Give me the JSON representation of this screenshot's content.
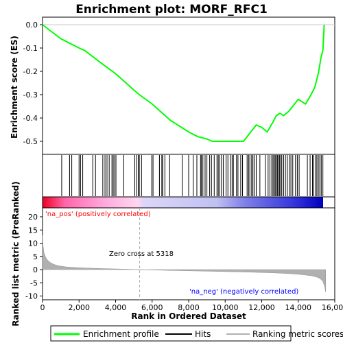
{
  "chart_data": {
    "type": "line",
    "title": "Enrichment plot: MORF_RFC1",
    "xlabel": "Rank in Ordered Dataset",
    "ylabel_top": "Enrichment score (ES)",
    "ylabel_bottom": "Ranked list metric (PreRanked)",
    "x_range": [
      0,
      16000
    ],
    "x_ticks": [
      "0",
      "2,000",
      "4,000",
      "6,000",
      "8,000",
      "10,000",
      "12,000",
      "14,000",
      "16,000"
    ],
    "x_tick_values": [
      0,
      2000,
      4000,
      6000,
      8000,
      10000,
      12000,
      14000,
      16000
    ],
    "n_genes": 15500,
    "es_ylim": [
      -0.53,
      0.02
    ],
    "es_ticks": [
      "0.0",
      "-0.1",
      "-0.2",
      "-0.3",
      "-0.4",
      "-0.5"
    ],
    "es_tick_values": [
      0.0,
      -0.1,
      -0.2,
      -0.3,
      -0.4,
      -0.5
    ],
    "es_profile": {
      "x": [
        0,
        1000,
        1500,
        2000,
        2300,
        2800,
        3300,
        4000,
        5000,
        5300,
        6000,
        7000,
        8000,
        8500,
        9000,
        9300,
        9600,
        10000,
        10500,
        11000,
        11200,
        11500,
        11700,
        12000,
        12300,
        12600,
        12800,
        13000,
        13200,
        13500,
        13800,
        14000,
        14400,
        14700,
        14900,
        15100,
        15250,
        15350,
        15420
      ],
      "y": [
        0.0,
        -0.06,
        -0.08,
        -0.1,
        -0.11,
        -0.14,
        -0.17,
        -0.21,
        -0.28,
        -0.3,
        -0.34,
        -0.41,
        -0.46,
        -0.48,
        -0.49,
        -0.5,
        -0.5,
        -0.5,
        -0.5,
        -0.5,
        -0.48,
        -0.45,
        -0.43,
        -0.44,
        -0.46,
        -0.42,
        -0.39,
        -0.38,
        -0.39,
        -0.37,
        -0.34,
        -0.32,
        -0.34,
        -0.3,
        -0.27,
        -0.21,
        -0.14,
        -0.11,
        0.0
      ]
    },
    "hits": [
      1050,
      1480,
      1600,
      2000,
      2080,
      2200,
      2750,
      2900,
      3300,
      3420,
      3530,
      3650,
      3800,
      3870,
      3950,
      4020,
      4450,
      5050,
      5150,
      5240,
      5300,
      5420,
      5980,
      6050,
      6400,
      6530,
      6580,
      6700,
      6960,
      7650,
      8000,
      8250,
      8450,
      8650,
      8700,
      8780,
      8900,
      9000,
      9150,
      9250,
      9400,
      9550,
      9620,
      9700,
      9800,
      9900,
      10050,
      10150,
      10300,
      10380,
      10450,
      10620,
      10700,
      10850,
      10950,
      11200,
      11280,
      11350,
      11450,
      11520,
      11600,
      11700,
      11900,
      12200,
      12350,
      12450,
      12550,
      12620,
      12680,
      12740,
      12800,
      12860,
      12920,
      12980,
      13050,
      13100,
      13200,
      13300,
      13400,
      13520,
      13600,
      13700,
      13850,
      13950,
      14050,
      14500,
      14650,
      14780,
      14850,
      14950,
      15020,
      15100,
      15180,
      15260,
      15350
    ],
    "metric_ylim": [
      -10,
      22
    ],
    "metric_ticks": [
      "20",
      "15",
      "10",
      "5",
      "0",
      "-5",
      "-10"
    ],
    "metric_tick_values": [
      20,
      15,
      10,
      5,
      0,
      -5,
      -10
    ],
    "metric_profile": {
      "x": [
        0,
        30,
        80,
        150,
        250,
        400,
        600,
        900,
        1300,
        2000,
        3000,
        4000,
        5318,
        7000,
        9000,
        11000,
        12500,
        13500,
        14200,
        14700,
        15000,
        15200,
        15350,
        15450,
        15500
      ],
      "y": [
        13,
        9,
        6.5,
        5,
        3.8,
        2.8,
        2,
        1.4,
        1,
        0.7,
        0.45,
        0.25,
        0,
        -0.3,
        -0.6,
        -0.9,
        -1.2,
        -1.5,
        -1.9,
        -2.3,
        -2.8,
        -3.4,
        -4.5,
        -6.5,
        -8.5
      ]
    },
    "zero_cross_label": "Zero cross at 5318",
    "zero_cross_rank": 5318,
    "pos_label": "'na_pos' (positively correlated)",
    "neg_label": "'na_neg' (negatively correlated)",
    "legend": [
      "Enrichment profile",
      "Hits",
      "Ranking metric scores"
    ],
    "colors": {
      "es_line": "#00ff00",
      "pos_text": "#ff0000",
      "neg_text": "#0000ff",
      "metric_fill": "#b0b0b0",
      "zero_line": "#b0b0b0"
    }
  }
}
